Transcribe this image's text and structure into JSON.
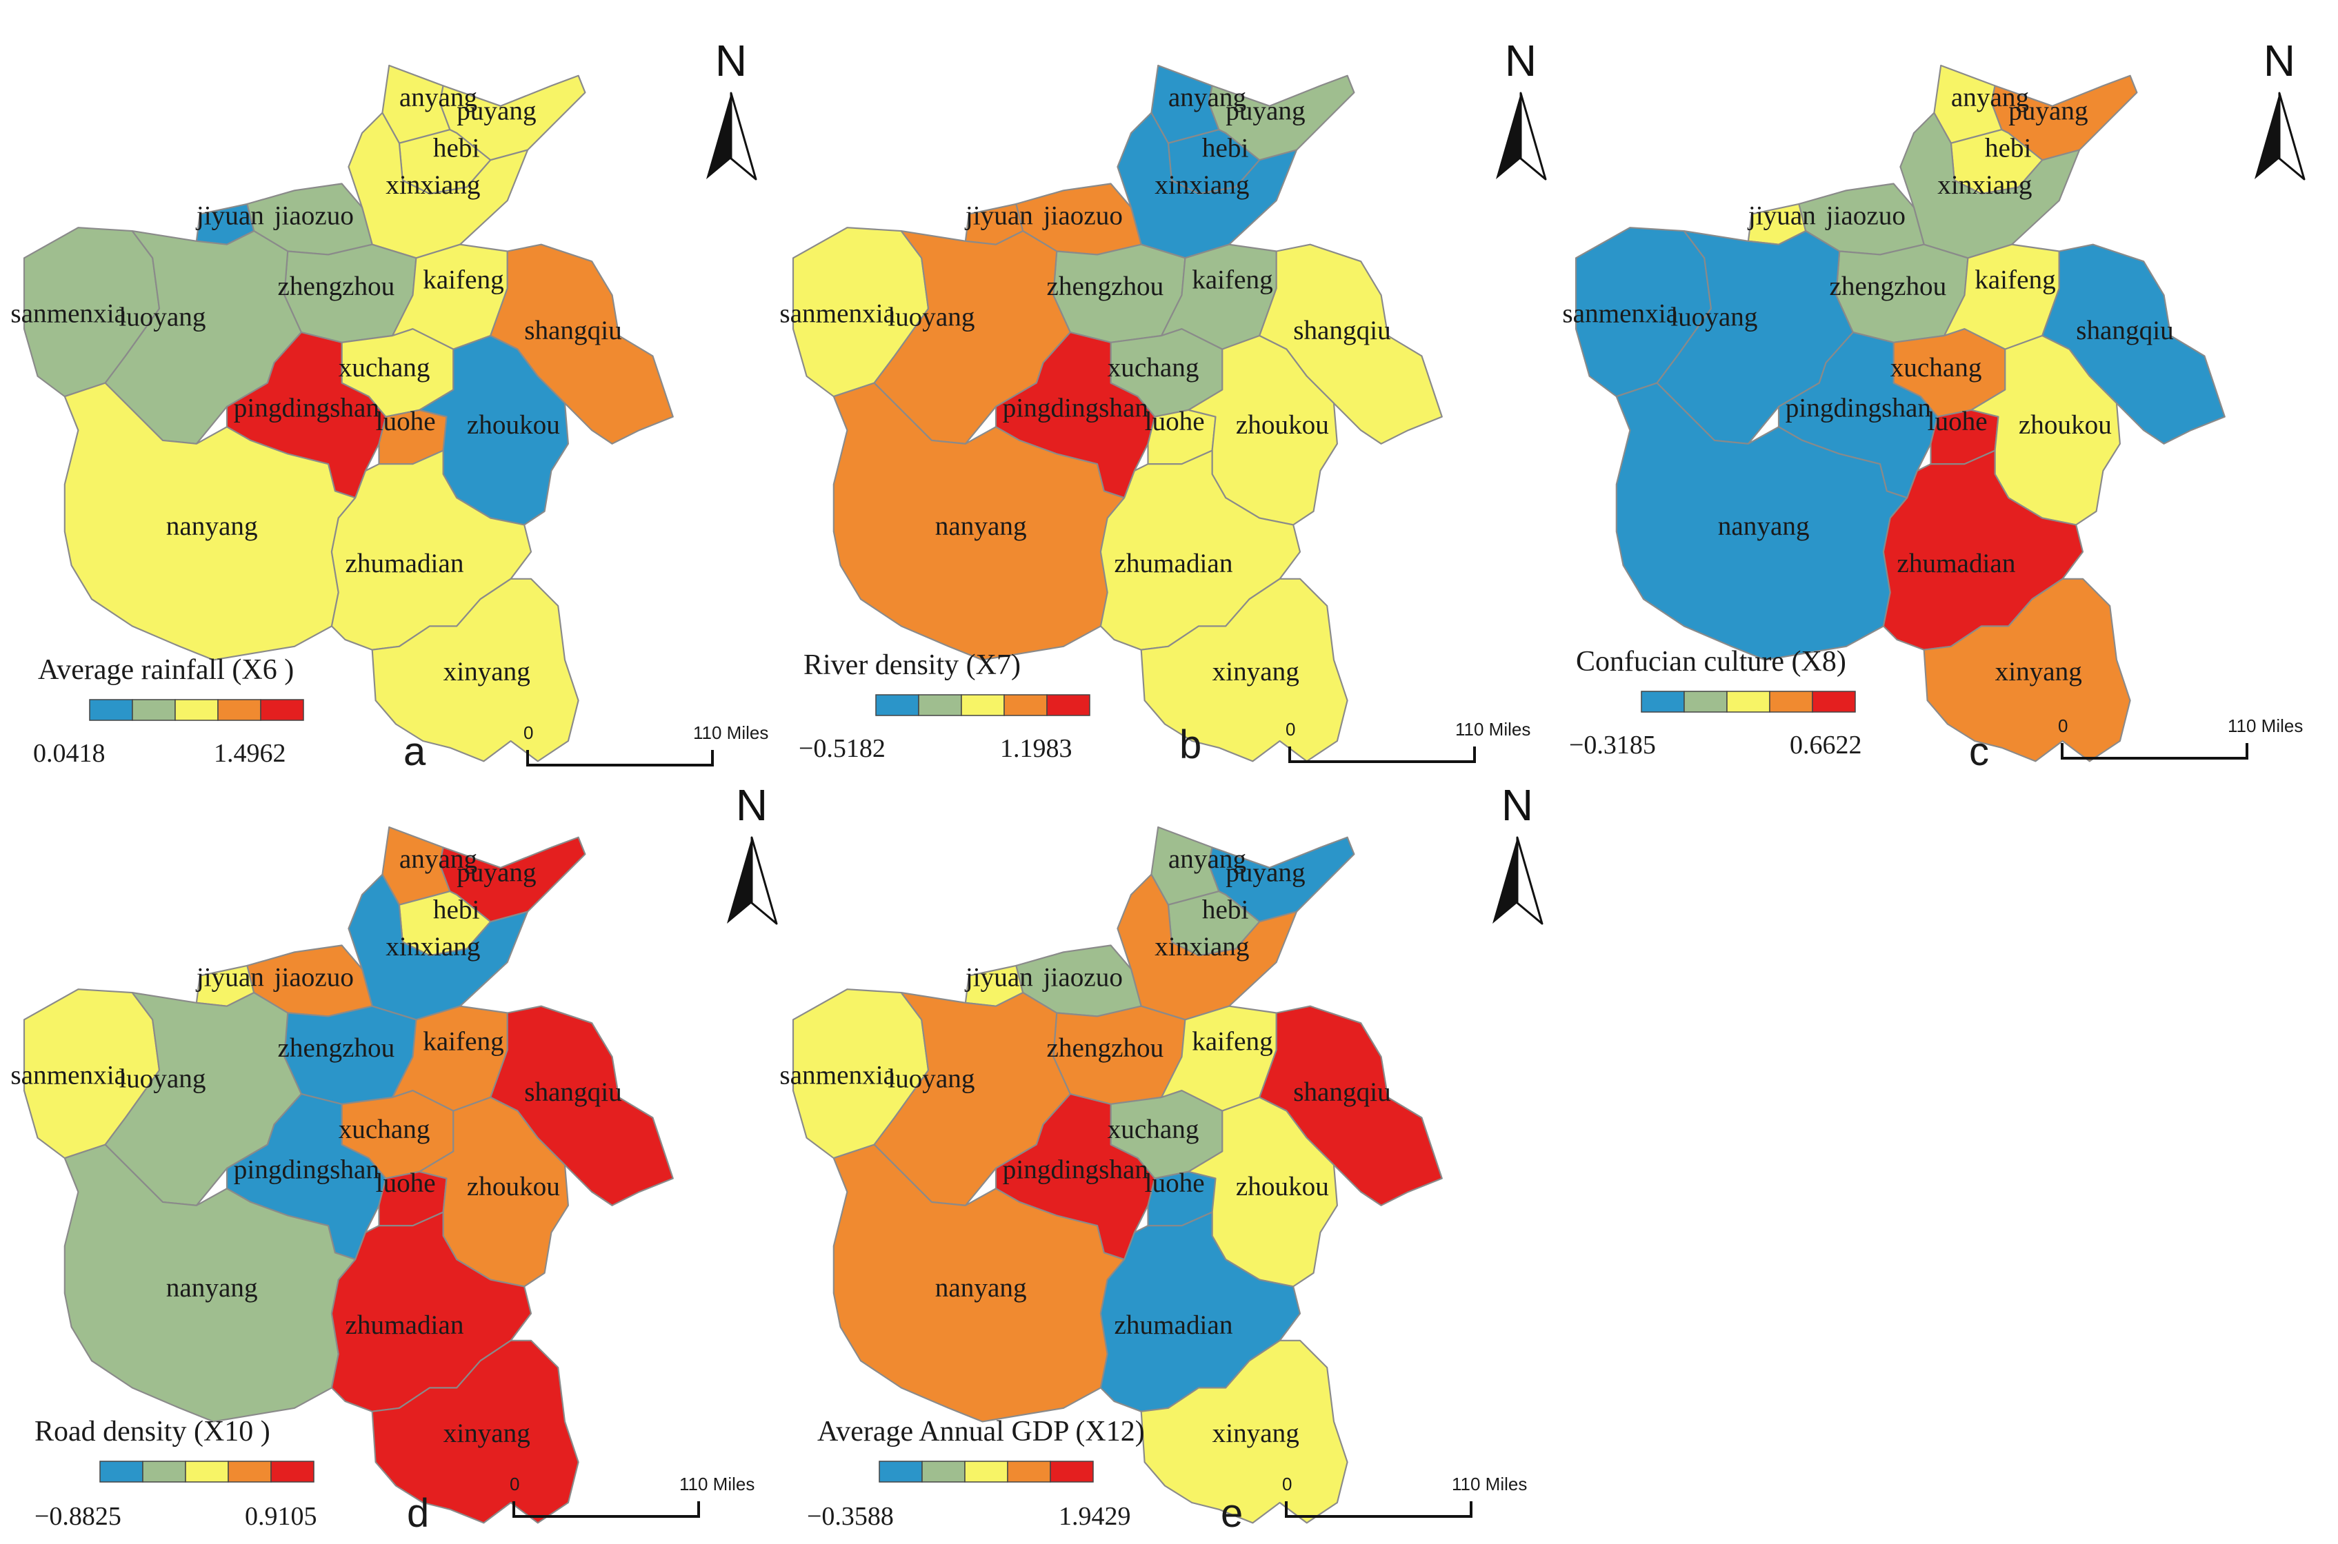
{
  "palette": {
    "c1": "#2b95c9",
    "c2": "#9fbe8f",
    "c3": "#f7f466",
    "c4": "#f08a30",
    "c5": "#e41f1f"
  },
  "north_label": "N",
  "scale": {
    "zero": "0",
    "end": "110 Miles"
  },
  "regions": [
    "anyang",
    "puyang",
    "hebi",
    "xinxiang",
    "jiyuan",
    "jiaozuo",
    "zhengzhou",
    "kaifeng",
    "shangqiu",
    "sanmenxia",
    "luoyang",
    "xuchang",
    "pingdingshan",
    "luohe",
    "zhoukou",
    "nanyang",
    "zhumadian",
    "xinyang"
  ],
  "panels": [
    {
      "letter": "a",
      "legend_title": "Average rainfall  (X6  )",
      "legend_min": "0.0418",
      "legend_max": "1.4962",
      "class_levels": {
        "anyang": 3,
        "puyang": 3,
        "hebi": 3,
        "xinxiang": 3,
        "jiyuan": 1,
        "jiaozuo": 2,
        "zhengzhou": 2,
        "kaifeng": 3,
        "shangqiu": 4,
        "sanmenxia": 2,
        "luoyang": 2,
        "xuchang": 3,
        "pingdingshan": 5,
        "luohe": 4,
        "zhoukou": 1,
        "nanyang": 3,
        "zhumadian": 3,
        "xinyang": 3
      }
    },
    {
      "letter": "b",
      "legend_title": "River density (X7)",
      "legend_min": "−0.5182",
      "legend_max": "1.1983",
      "class_levels": {
        "anyang": 1,
        "puyang": 2,
        "hebi": 1,
        "xinxiang": 1,
        "jiyuan": 4,
        "jiaozuo": 4,
        "zhengzhou": 2,
        "kaifeng": 2,
        "shangqiu": 3,
        "sanmenxia": 3,
        "luoyang": 4,
        "xuchang": 2,
        "pingdingshan": 5,
        "luohe": 3,
        "zhoukou": 3,
        "nanyang": 4,
        "zhumadian": 3,
        "xinyang": 3
      }
    },
    {
      "letter": "c",
      "legend_title": "Confucian culture (X8)",
      "legend_min": "−0.3185",
      "legend_max": "0.6622",
      "class_levels": {
        "anyang": 3,
        "puyang": 4,
        "hebi": 3,
        "xinxiang": 2,
        "jiyuan": 3,
        "jiaozuo": 2,
        "zhengzhou": 2,
        "kaifeng": 3,
        "shangqiu": 1,
        "sanmenxia": 1,
        "luoyang": 1,
        "xuchang": 4,
        "pingdingshan": 1,
        "luohe": 5,
        "zhoukou": 3,
        "nanyang": 1,
        "zhumadian": 5,
        "xinyang": 4
      }
    },
    {
      "letter": "d",
      "legend_title": "Road density (X10 )",
      "legend_min": "−0.8825",
      "legend_max": "0.9105",
      "class_levels": {
        "anyang": 4,
        "puyang": 5,
        "hebi": 3,
        "xinxiang": 1,
        "jiyuan": 3,
        "jiaozuo": 4,
        "zhengzhou": 1,
        "kaifeng": 4,
        "shangqiu": 5,
        "sanmenxia": 3,
        "luoyang": 2,
        "xuchang": 4,
        "pingdingshan": 1,
        "luohe": 5,
        "zhoukou": 4,
        "nanyang": 2,
        "zhumadian": 5,
        "xinyang": 5
      }
    },
    {
      "letter": "e",
      "legend_title": "Average Annual GDP (X12)",
      "legend_min": "−0.3588",
      "legend_max": "1.9429",
      "class_levels": {
        "anyang": 2,
        "puyang": 1,
        "hebi": 2,
        "xinxiang": 4,
        "jiyuan": 3,
        "jiaozuo": 2,
        "zhengzhou": 4,
        "kaifeng": 3,
        "shangqiu": 5,
        "sanmenxia": 3,
        "luoyang": 4,
        "xuchang": 2,
        "pingdingshan": 5,
        "luohe": 1,
        "zhoukou": 3,
        "nanyang": 4,
        "zhumadian": 1,
        "xinyang": 3
      }
    }
  ]
}
